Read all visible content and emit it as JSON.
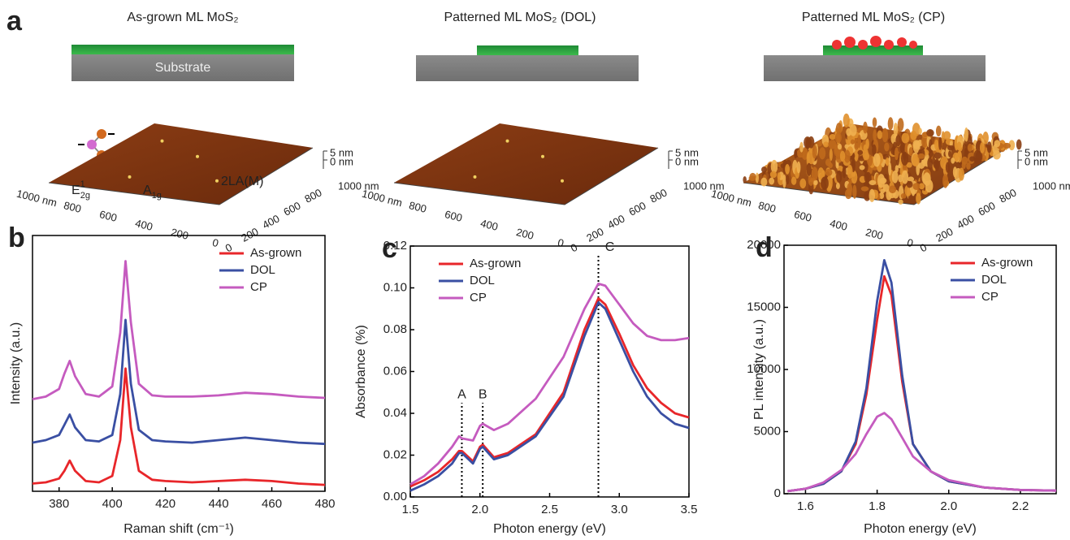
{
  "panel_a": {
    "label": "a",
    "substrate_label": "Substrate",
    "samples": [
      {
        "title": "As-grown ML MoS₂",
        "afm": {
          "x_labels": [
            "1000 nm",
            "800",
            "600",
            "400",
            "200",
            "0"
          ],
          "y_labels": [
            "0",
            "200",
            "400",
            "600",
            "800",
            "1000 nm"
          ],
          "z_labels": [
            "5 nm",
            "0 nm"
          ]
        }
      },
      {
        "title": "Patterned ML MoS₂ (DOL)",
        "afm": {
          "x_labels": [
            "1000 nm",
            "800",
            "600",
            "400",
            "200",
            "0"
          ],
          "y_labels": [
            "0",
            "200",
            "400",
            "600",
            "800",
            "1000 nm"
          ],
          "z_labels": [
            "5 nm",
            "0 nm"
          ]
        }
      },
      {
        "title": "Patterned ML MoS₂ (CP)",
        "afm": {
          "x_labels": [
            "1000 nm",
            "800",
            "600",
            "400",
            "200",
            "0"
          ],
          "y_labels": [
            "0",
            "200",
            "400",
            "600",
            "800",
            "1000 nm"
          ],
          "z_labels": [
            "5 nm",
            "0 nm"
          ]
        }
      }
    ]
  },
  "chart_data": [
    {
      "type": "line",
      "panel_label": "b",
      "xlabel": "Raman shift (cm⁻¹)",
      "ylabel": "Intensity (a.u.)",
      "x": [
        370,
        375,
        380,
        382,
        384,
        386,
        390,
        395,
        400,
        403,
        405,
        407,
        410,
        415,
        420,
        430,
        440,
        450,
        460,
        470,
        480
      ],
      "xlim": [
        370,
        480
      ],
      "xticks": [
        380,
        400,
        420,
        440,
        460,
        480
      ],
      "ylim": [
        0,
        1
      ],
      "legend": "upper right",
      "series": [
        {
          "name": "As-grown",
          "color": "#e8262a",
          "values": [
            0.03,
            0.035,
            0.05,
            0.08,
            0.12,
            0.08,
            0.04,
            0.035,
            0.06,
            0.2,
            0.48,
            0.25,
            0.08,
            0.045,
            0.04,
            0.035,
            0.04,
            0.045,
            0.04,
            0.03,
            0.025
          ]
        },
        {
          "name": "DOL",
          "color": "#3a4fa3",
          "values": [
            0.19,
            0.2,
            0.22,
            0.26,
            0.3,
            0.25,
            0.2,
            0.195,
            0.22,
            0.38,
            0.67,
            0.42,
            0.24,
            0.2,
            0.195,
            0.19,
            0.2,
            0.21,
            0.2,
            0.19,
            0.185
          ]
        },
        {
          "name": "CP",
          "color": "#c55bbf",
          "values": [
            0.36,
            0.37,
            0.4,
            0.46,
            0.51,
            0.45,
            0.38,
            0.37,
            0.41,
            0.62,
            0.9,
            0.66,
            0.42,
            0.375,
            0.37,
            0.37,
            0.375,
            0.385,
            0.38,
            0.37,
            0.365
          ]
        }
      ],
      "peak_labels": [
        {
          "base": "E",
          "sub": "2g",
          "sup": "1"
        },
        {
          "base": "A",
          "sub": "1g"
        },
        {
          "base": "2LA(M)"
        }
      ]
    },
    {
      "type": "line",
      "panel_label": "c",
      "xlabel": "Photon energy (eV)",
      "ylabel": "Absorbance (%)",
      "x": [
        1.5,
        1.6,
        1.7,
        1.8,
        1.85,
        1.87,
        1.95,
        2.0,
        2.02,
        2.1,
        2.2,
        2.4,
        2.6,
        2.75,
        2.85,
        2.9,
        3.0,
        3.1,
        3.2,
        3.3,
        3.4,
        3.5
      ],
      "xlim": [
        1.5,
        3.5
      ],
      "xticks": [
        1.5,
        {
          "value": 2,
          "label": "2.0"
        },
        2.5,
        {
          "value": 3,
          "label": "3.0"
        },
        3.5
      ],
      "ylim": [
        0,
        0.12
      ],
      "yticks": [
        {
          "value": 0,
          "label": "0.00"
        },
        0.02,
        0.04,
        0.06,
        0.08,
        {
          "value": 0.1,
          "label": "0.10"
        },
        0.12
      ],
      "legend": "upper left",
      "series": [
        {
          "name": "As-grown",
          "color": "#e8262a",
          "values": [
            0.005,
            0.008,
            0.012,
            0.018,
            0.022,
            0.022,
            0.017,
            0.024,
            0.025,
            0.019,
            0.021,
            0.03,
            0.05,
            0.08,
            0.095,
            0.092,
            0.078,
            0.063,
            0.052,
            0.045,
            0.04,
            0.038
          ]
        },
        {
          "name": "DOL",
          "color": "#3a4fa3",
          "values": [
            0.003,
            0.006,
            0.01,
            0.016,
            0.021,
            0.021,
            0.016,
            0.023,
            0.024,
            0.018,
            0.02,
            0.029,
            0.048,
            0.077,
            0.093,
            0.09,
            0.075,
            0.06,
            0.048,
            0.04,
            0.035,
            0.033
          ]
        },
        {
          "name": "CP",
          "color": "#c55bbf",
          "values": [
            0.006,
            0.01,
            0.016,
            0.024,
            0.029,
            0.028,
            0.027,
            0.034,
            0.035,
            0.032,
            0.035,
            0.047,
            0.067,
            0.09,
            0.102,
            0.101,
            0.092,
            0.083,
            0.077,
            0.075,
            0.075,
            0.076
          ]
        }
      ],
      "markers": [
        {
          "text": "A",
          "x": 1.87
        },
        {
          "text": "B",
          "x": 2.02
        },
        {
          "text": "C",
          "x": 2.85
        }
      ]
    },
    {
      "type": "line",
      "panel_label": "d",
      "xlabel": "Photon energy (eV)",
      "ylabel": "PL intensity (a.u.)",
      "x": [
        1.55,
        1.6,
        1.65,
        1.7,
        1.74,
        1.77,
        1.8,
        1.82,
        1.84,
        1.87,
        1.9,
        1.95,
        2.0,
        2.1,
        2.2,
        2.3
      ],
      "xlim": [
        1.54,
        2.3
      ],
      "xticks": [
        1.6,
        1.8,
        {
          "value": 2,
          "label": "2.0"
        },
        2.2
      ],
      "ylim": [
        0,
        20000
      ],
      "yticks": [
        0,
        5000,
        10000,
        15000,
        20000
      ],
      "legend": "upper right",
      "series": [
        {
          "name": "As-grown",
          "color": "#e8262a",
          "values": [
            200,
            400,
            800,
            1800,
            4000,
            8000,
            14000,
            17500,
            16000,
            9000,
            4000,
            1800,
            1000,
            500,
            300,
            250
          ]
        },
        {
          "name": "DOL",
          "color": "#3a4fa3",
          "values": [
            200,
            400,
            800,
            1800,
            4200,
            8500,
            15500,
            18800,
            17000,
            9500,
            4000,
            1800,
            1000,
            500,
            300,
            250
          ]
        },
        {
          "name": "CP",
          "color": "#c55bbf",
          "values": [
            200,
            400,
            900,
            1900,
            3200,
            4800,
            6200,
            6500,
            6000,
            4500,
            3000,
            1800,
            1100,
            500,
            300,
            250
          ]
        }
      ]
    }
  ]
}
